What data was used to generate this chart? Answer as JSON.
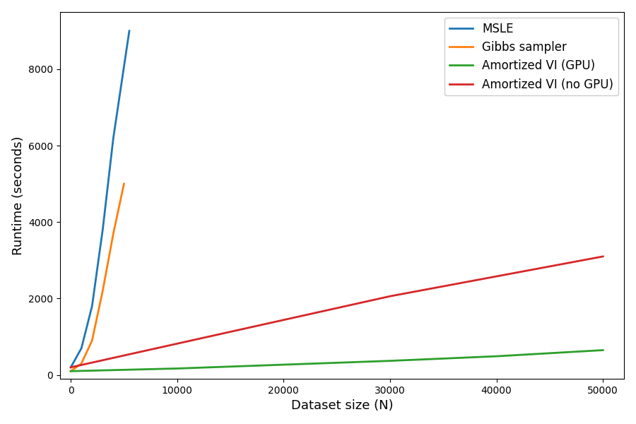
{
  "title": "",
  "xlabel": "Dataset size (N)",
  "ylabel": "Runtime (seconds)",
  "xlim": [
    -1000,
    52000
  ],
  "ylim": [
    -100,
    9500
  ],
  "yticks": [
    0,
    2000,
    4000,
    6000,
    8000
  ],
  "xticks": [
    0,
    10000,
    20000,
    30000,
    40000,
    50000
  ],
  "xtick_labels": [
    "0",
    "10000",
    "20000",
    "30000",
    "40000",
    "50000"
  ],
  "series": [
    {
      "label": "MSLE",
      "color": "#1f77b4",
      "x": [
        0,
        1000,
        2000,
        3000,
        4000,
        5500
      ],
      "y": [
        200,
        700,
        1800,
        3800,
        6200,
        9000
      ]
    },
    {
      "label": "Gibbs sampler",
      "color": "#ff7f0e",
      "x": [
        0,
        1000,
        2000,
        3000,
        4000,
        5000
      ],
      "y": [
        100,
        300,
        900,
        2200,
        3700,
        5000
      ]
    },
    {
      "label": "Amortized VI (GPU)",
      "color": "#2ca02c",
      "x": [
        0,
        10000,
        20000,
        30000,
        40000,
        50000
      ],
      "y": [
        100,
        170,
        270,
        370,
        490,
        650
      ]
    },
    {
      "label": "Amortized VI (no GPU)",
      "color": "#d62728",
      "x": [
        0,
        10000,
        20000,
        30000,
        40000,
        50000
      ],
      "y": [
        200,
        820,
        1440,
        2060,
        2580,
        3100
      ]
    }
  ],
  "legend_loc": "upper right",
  "linewidth": 2.0,
  "background_color": "#ffffff",
  "figure_bg": "#ffffff"
}
